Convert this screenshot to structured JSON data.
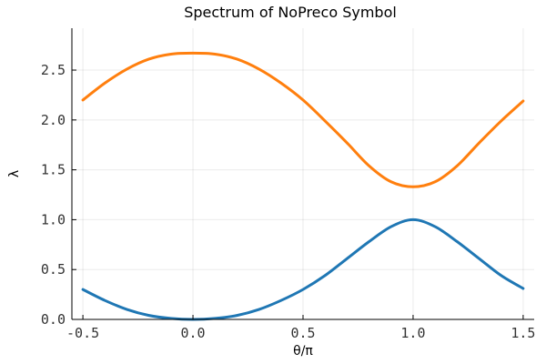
{
  "chart_data": {
    "type": "line",
    "title": "Spectrum of NoPreco Symbol",
    "xlabel": "θ/π",
    "ylabel": "λ",
    "xlim": [
      -0.55,
      1.55
    ],
    "ylim": [
      0.0,
      2.92
    ],
    "xticks": [
      -0.5,
      0.0,
      0.5,
      1.0,
      1.5
    ],
    "xtick_labels": [
      "-0.5",
      "0.0",
      "0.5",
      "1.0",
      "1.5"
    ],
    "yticks": [
      0.0,
      0.5,
      1.0,
      1.5,
      2.0,
      2.5
    ],
    "ytick_labels": [
      "0.0",
      "0.5",
      "1.0",
      "1.5",
      "2.0",
      "2.5"
    ],
    "grid": true,
    "legend": "none",
    "x": [
      -0.5,
      -0.4,
      -0.3,
      -0.2,
      -0.1,
      0.0,
      0.1,
      0.2,
      0.3,
      0.4,
      0.5,
      0.6,
      0.7,
      0.8,
      0.9,
      1.0,
      1.1,
      1.2,
      1.3,
      1.4,
      1.5
    ],
    "series": [
      {
        "color": "#1f77b4",
        "values": [
          0.3,
          0.19,
          0.1,
          0.04,
          0.01,
          0.0,
          0.01,
          0.04,
          0.1,
          0.19,
          0.3,
          0.44,
          0.61,
          0.78,
          0.93,
          1.0,
          0.93,
          0.78,
          0.61,
          0.44,
          0.31
        ]
      },
      {
        "color": "#ff7f0e",
        "values": [
          2.2,
          2.37,
          2.51,
          2.61,
          2.66,
          2.67,
          2.66,
          2.61,
          2.51,
          2.37,
          2.2,
          1.99,
          1.77,
          1.54,
          1.38,
          1.33,
          1.38,
          1.54,
          1.77,
          1.99,
          2.19
        ]
      }
    ]
  }
}
